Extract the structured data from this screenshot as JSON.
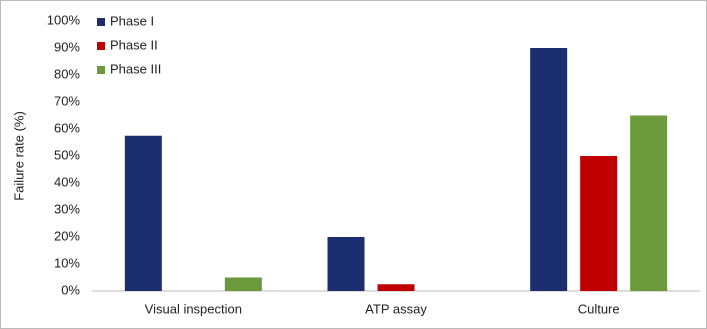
{
  "chart_data": {
    "type": "bar",
    "y_label": "Failure rate (%)",
    "categories": [
      "Visual inspection",
      "ATP assay",
      "Culture"
    ],
    "series": [
      {
        "name": "Phase I",
        "color": "#1b2f6e",
        "values": [
          57.5,
          20,
          90
        ]
      },
      {
        "name": "Phase II",
        "color": "#c00000",
        "values": [
          0,
          2.5,
          50
        ]
      },
      {
        "name": "Phase III",
        "color": "#6b9a3d",
        "values": [
          5,
          0,
          65
        ]
      }
    ],
    "ylim": [
      0,
      100
    ],
    "yticks": [
      {
        "value": 0,
        "label": "0%"
      },
      {
        "value": 10,
        "label": "10%"
      },
      {
        "value": 20,
        "label": "20%"
      },
      {
        "value": 30,
        "label": "30%"
      },
      {
        "value": 40,
        "label": "40%"
      },
      {
        "value": 50,
        "label": "50%"
      },
      {
        "value": 60,
        "label": "60%"
      },
      {
        "value": 70,
        "label": "70%"
      },
      {
        "value": 80,
        "label": "80%"
      },
      {
        "value": 90,
        "label": "90%"
      },
      {
        "value": 100,
        "label": "100%"
      }
    ],
    "grid": false,
    "legend_position": "top-left"
  }
}
